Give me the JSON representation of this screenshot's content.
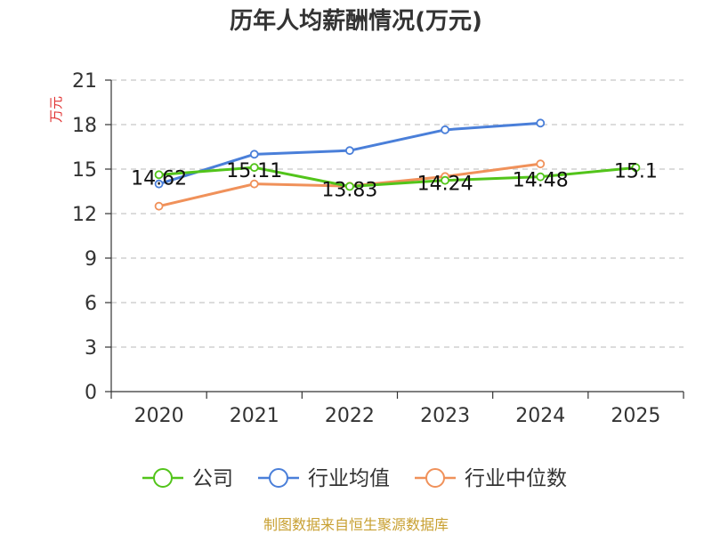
{
  "chart_data": {
    "type": "line",
    "title": "历年人均薪酬情况(万元)",
    "ylabel": "万元",
    "xlabel": "",
    "categories": [
      "2020",
      "2021",
      "2022",
      "2023",
      "2024",
      "2025"
    ],
    "ylim": [
      0,
      21
    ],
    "yticks": [
      0,
      3,
      6,
      9,
      12,
      15,
      18,
      21
    ],
    "grid": true,
    "legend_position": "bottom",
    "series": [
      {
        "name": "公司",
        "color": "#52c41a",
        "values": [
          14.62,
          15.11,
          13.83,
          14.24,
          14.48,
          15.1
        ],
        "labels": [
          "14.62",
          "15.11",
          "13.83",
          "14.24",
          "14.48",
          "15.1"
        ]
      },
      {
        "name": "行业均值",
        "color": "#4a7fd9",
        "values": [
          14.0,
          16.0,
          16.25,
          17.65,
          18.1,
          null
        ]
      },
      {
        "name": "行业中位数",
        "color": "#f0915a",
        "values": [
          12.5,
          14.0,
          13.85,
          14.5,
          15.35,
          null
        ]
      }
    ]
  },
  "source_text": "制图数据来自恒生聚源数据库"
}
